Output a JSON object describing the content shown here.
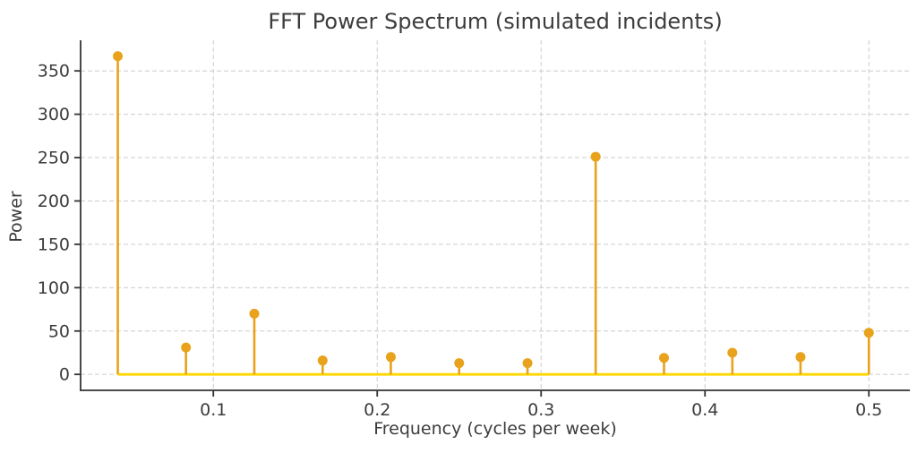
{
  "chart_data": {
    "type": "stem",
    "title": "FFT Power Spectrum (simulated incidents)",
    "xlabel": "Frequency (cycles per week)",
    "ylabel": "Power",
    "x": [
      0.0417,
      0.0833,
      0.125,
      0.1667,
      0.2083,
      0.25,
      0.2917,
      0.3333,
      0.375,
      0.4167,
      0.4583,
      0.5
    ],
    "values": [
      367,
      31,
      70,
      16,
      20,
      13,
      13,
      251,
      19,
      25,
      20,
      48
    ],
    "xticks": [
      0.1,
      0.2,
      0.3,
      0.4,
      0.5
    ],
    "xtick_labels": [
      "0.1",
      "0.2",
      "0.3",
      "0.4",
      "0.5"
    ],
    "yticks": [
      0,
      50,
      100,
      150,
      200,
      250,
      300,
      350
    ],
    "ytick_labels": [
      "0",
      "50",
      "100",
      "150",
      "200",
      "250",
      "300",
      "350"
    ],
    "xlim": [
      0.019,
      0.525
    ],
    "ylim": [
      -18.4,
      385.3
    ],
    "grid": true,
    "grid_style": "dashed",
    "legend": "none",
    "colors": {
      "stem": "#E8A21C",
      "marker": "#E8A21C",
      "baseline": "#FFD700",
      "grid": "#CCCCCC",
      "spine": "#333333",
      "text": "#3C3C3C",
      "background": "#FFFFFF"
    }
  }
}
